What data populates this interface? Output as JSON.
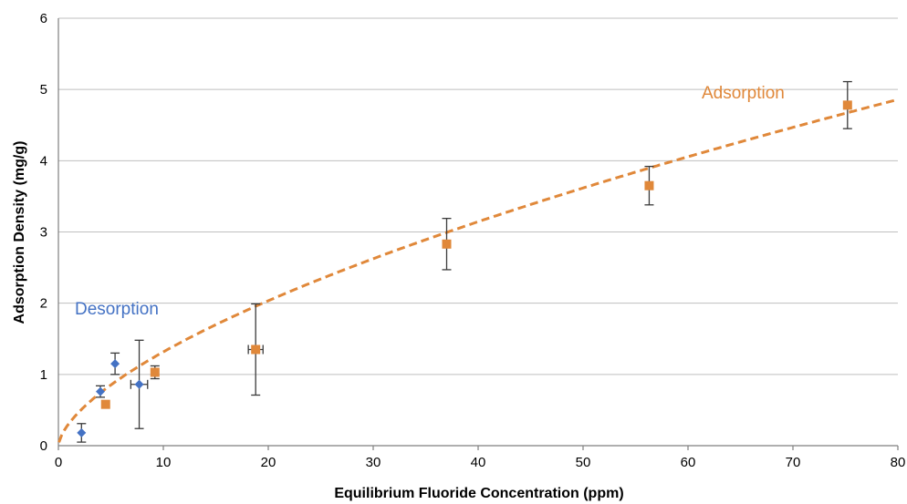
{
  "chart_data": {
    "type": "scatter",
    "title": "",
    "xlabel": "Equilibrium Fluoride Concentration (ppm)",
    "ylabel": "Adsorption Density (mg/g)",
    "xlim": [
      0,
      80
    ],
    "ylim": [
      0,
      6
    ],
    "x_ticks": [
      0,
      10,
      20,
      30,
      40,
      50,
      60,
      70,
      80
    ],
    "y_ticks": [
      0,
      1,
      2,
      3,
      4,
      5,
      6
    ],
    "grid": "horizontal",
    "legend": "none",
    "series": [
      {
        "name": "Adsorption",
        "marker": "square",
        "color": "#E0883A",
        "points": [
          {
            "x": 4.5,
            "y": 0.58,
            "yerr": 0.0,
            "xerr": 0.0
          },
          {
            "x": 9.2,
            "y": 1.03,
            "yerr": 0.09,
            "xerr": 0.0
          },
          {
            "x": 18.8,
            "y": 1.35,
            "yerr": 0.64,
            "xerr": 0.7
          },
          {
            "x": 37.0,
            "y": 2.83,
            "yerr": 0.36,
            "xerr": 0.0
          },
          {
            "x": 56.3,
            "y": 3.65,
            "yerr": 0.27,
            "xerr": 0.0
          },
          {
            "x": 75.2,
            "y": 4.78,
            "yerr": 0.33,
            "xerr": 0.0
          }
        ],
        "fit": {
          "style": "dashed",
          "model": "power",
          "a": 0.31,
          "b": 0.628
        }
      },
      {
        "name": "Desorption",
        "marker": "diamond",
        "color": "#4472C4",
        "points": [
          {
            "x": 2.2,
            "y": 0.18,
            "yerr": 0.13,
            "xerr": 0.0
          },
          {
            "x": 4.0,
            "y": 0.76,
            "yerr": 0.08,
            "xerr": 0.0
          },
          {
            "x": 5.4,
            "y": 1.15,
            "yerr": 0.15,
            "xerr": 0.0
          },
          {
            "x": 7.7,
            "y": 0.86,
            "yerr": 0.62,
            "xerr": 0.8
          }
        ]
      }
    ],
    "annotations": [
      {
        "text": "Adsorption",
        "color": "#E0883A"
      },
      {
        "text": "Desorption",
        "color": "#4472C4"
      }
    ]
  }
}
